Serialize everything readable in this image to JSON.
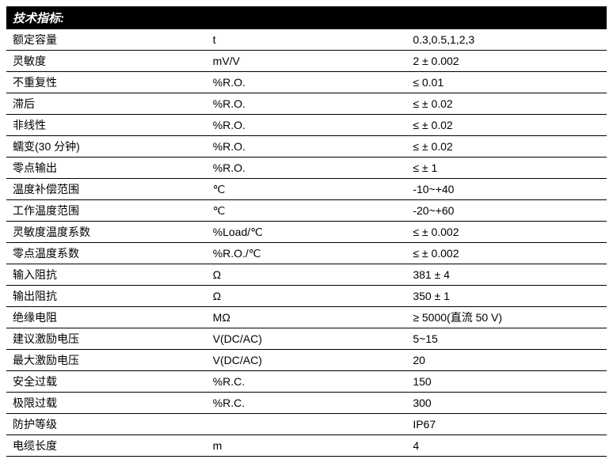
{
  "title": "技术指标:",
  "columns": [
    "param",
    "unit",
    "value"
  ],
  "rows": [
    {
      "param": "额定容量",
      "unit": "t",
      "value": "0.3,0.5,1,2,3"
    },
    {
      "param": "灵敏度",
      "unit": "mV/V",
      "value": "2 ± 0.002"
    },
    {
      "param": "不重复性",
      "unit": "%R.O.",
      "value": "≤ 0.01"
    },
    {
      "param": "滞后",
      "unit": "%R.O.",
      "value": "≤ ± 0.02"
    },
    {
      "param": "非线性",
      "unit": "%R.O.",
      "value": "≤ ± 0.02"
    },
    {
      "param": "蠕变(30 分钟)",
      "unit": "%R.O.",
      "value": "≤ ± 0.02"
    },
    {
      "param": "零点输出",
      "unit": "%R.O.",
      "value": "≤ ± 1"
    },
    {
      "param": "温度补偿范围",
      "unit": "℃",
      "value": "-10~+40"
    },
    {
      "param": "工作温度范围",
      "unit": "℃",
      "value": "-20~+60"
    },
    {
      "param": "灵敏度温度系数",
      "unit": "%Load/℃",
      "value": "≤ ± 0.002"
    },
    {
      "param": "零点温度系数",
      "unit": "%R.O./℃",
      "value": "≤ ± 0.002"
    },
    {
      "param": "输入阻抗",
      "unit": "Ω",
      "value": "381 ± 4"
    },
    {
      "param": "输出阻抗",
      "unit": "Ω",
      "value": "350 ± 1"
    },
    {
      "param": "绝缘电阻",
      "unit": "MΩ",
      "value": "≥ 5000(直流 50 V)"
    },
    {
      "param": "建议激励电压",
      "unit": "V(DC/AC)",
      "value": "5~15"
    },
    {
      "param": "最大激励电压",
      "unit": "V(DC/AC)",
      "value": "20"
    },
    {
      "param": "安全过载",
      "unit": "%R.C.",
      "value": "150"
    },
    {
      "param": "极限过载",
      "unit": "%R.C.",
      "value": "300"
    },
    {
      "param": "防护等级",
      "unit": "",
      "value": "IP67"
    },
    {
      "param": "电缆长度",
      "unit": "m",
      "value": "4"
    }
  ],
  "styles": {
    "header_bg": "#000000",
    "header_fg": "#ffffff",
    "row_border": "#000000",
    "body_bg": "#ffffff",
    "font_size_header": 15,
    "font_size_body": 14,
    "col_widths_pct": [
      53,
      21,
      26
    ]
  }
}
